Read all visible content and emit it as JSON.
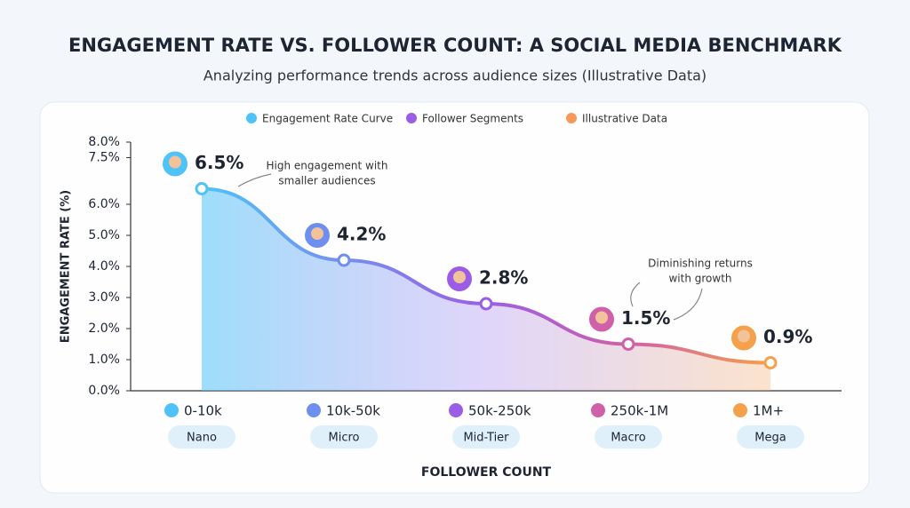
{
  "chart_data": {
    "type": "line",
    "title": "ENGAGEMENT RATE VS. FOLLOWER COUNT: A SOCIAL MEDIA BENCHMARK",
    "subtitle": "Analyzing performance trends across audience sizes (Illustrative Data)",
    "y_label": "ENGAGEMENT RATE (%)",
    "x_label": "FOLLOWER COUNT",
    "legend": [
      {
        "name": "Engagement Rate Curve",
        "color": "#4fc3f7"
      },
      {
        "name": "Follower Segments",
        "color": "#9b5de5"
      },
      {
        "name": "Illustrative Data",
        "color": "#f59a5a"
      }
    ],
    "categories": [
      "0-10k",
      "10k-50k",
      "50k-250k",
      "250k-1M",
      "1M+"
    ],
    "segments": [
      "Nano",
      "Micro",
      "Mid-Tier",
      "Macro",
      "Mega"
    ],
    "values": [
      6.5,
      4.2,
      2.8,
      1.5,
      0.9
    ],
    "value_labels": [
      "6.5%",
      "4.2%",
      "2.8%",
      "1.5%",
      "0.9%"
    ],
    "colors": [
      "#4fc3f7",
      "#6f8ff0",
      "#9b5de5",
      "#d060a8",
      "#f5a04a"
    ],
    "annotations": [
      {
        "lines": [
          "High engagement with",
          "smaller audiences"
        ]
      },
      {
        "lines": [
          "Diminishing returns",
          "with growth"
        ]
      }
    ],
    "ylim": [
      0,
      8
    ],
    "yticks": [
      {
        "value": 0,
        "label": "0.0%"
      },
      {
        "value": 1,
        "label": "1.0%"
      },
      {
        "value": 2,
        "label": "2.0%"
      },
      {
        "value": 3,
        "label": "3.0%"
      },
      {
        "value": 4,
        "label": "4.0%"
      },
      {
        "value": 5,
        "label": "5.0%"
      },
      {
        "value": 6,
        "label": "6.0%"
      },
      {
        "value": 7.5,
        "label": "7.5%"
      },
      {
        "value": 8,
        "label": "8.0%"
      }
    ],
    "grid": false
  }
}
